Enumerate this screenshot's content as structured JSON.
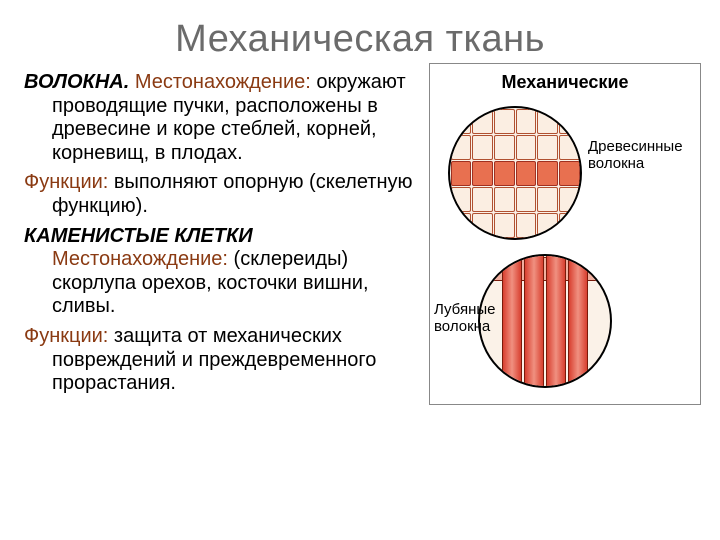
{
  "title": "Механическая ткань",
  "sections": [
    {
      "heading": "ВОЛОКНА. ",
      "heading_label": "Местонахождение: ",
      "body": "окружают проводящие пучки, расположены в древесине и коре стеблей, корней, корневищ, в плодах."
    },
    {
      "func_label": "Функции: ",
      "func_body": "выполняют опорную (скелетную функцию)."
    },
    {
      "heading": "КАМЕНИСТЫЕ КЛЕТКИ ",
      "heading_label": "Местонахождение: ",
      "body": "(склереиды) скорлупа орехов, косточки вишни, сливы."
    },
    {
      "func_label": "Функции: ",
      "func_body": "защита от механических повреждений и преждевременного прорастания."
    }
  ],
  "figure": {
    "title": "Механические",
    "label_top": "Древесинные\nволокна",
    "label_bottom": "Лубяные\nволокна"
  },
  "colors": {
    "title": "#6b6b6b",
    "accent": "#8a3a12",
    "text": "#000000",
    "fiber_red": "#d84030",
    "cell_border": "#b05030",
    "background": "#ffffff"
  }
}
